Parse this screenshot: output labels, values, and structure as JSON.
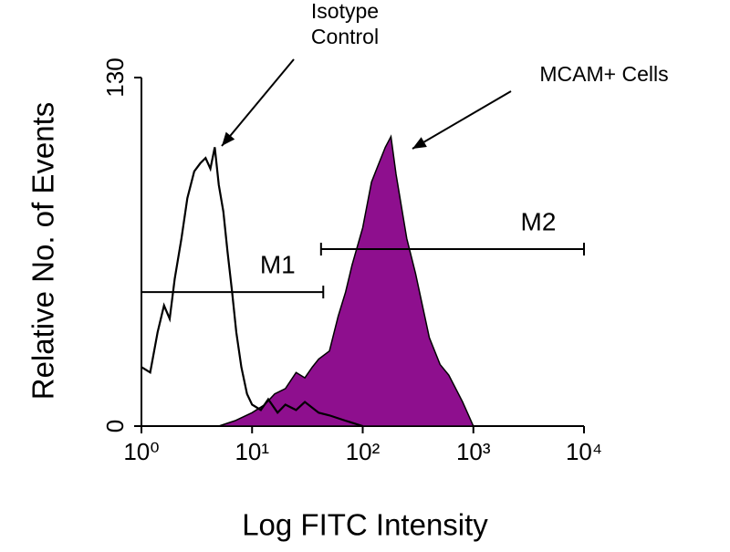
{
  "chart_data": {
    "type": "histogram-overlay",
    "x_label": "Log FITC Intensity",
    "y_label": "Relative No. of Events",
    "xscale": "log",
    "xlim": [
      1,
      10000
    ],
    "xticks": [
      {
        "value": 1,
        "label": "10⁰"
      },
      {
        "value": 10,
        "label": "10¹"
      },
      {
        "value": 100,
        "label": "10²"
      },
      {
        "value": 1000,
        "label": "10³"
      },
      {
        "value": 10000,
        "label": "10⁴"
      }
    ],
    "ylim": [
      0,
      130
    ],
    "yticks": [
      0,
      130
    ],
    "series": [
      {
        "name": "Isotype Control",
        "color": "#000000",
        "filled": false,
        "x": [
          1,
          1.2,
          1.4,
          1.6,
          1.8,
          2,
          2.3,
          2.6,
          3,
          3.4,
          3.8,
          4.2,
          4.6,
          5,
          5.5,
          6,
          6.6,
          7.2,
          8,
          9,
          10,
          12,
          14,
          17,
          20,
          25,
          30,
          40,
          50,
          70,
          100
        ],
        "values": [
          22,
          20,
          35,
          45,
          40,
          55,
          70,
          85,
          95,
          98,
          100,
          96,
          104,
          90,
          80,
          65,
          50,
          35,
          22,
          12,
          8,
          6,
          10,
          5,
          8,
          6,
          9,
          5,
          4,
          2,
          0
        ]
      },
      {
        "name": "MCAM+ Cells",
        "color": "#8e0f8e",
        "filled": true,
        "x": [
          5,
          7,
          10,
          13,
          16,
          20,
          25,
          30,
          35,
          40,
          50,
          60,
          70,
          80,
          100,
          120,
          140,
          160,
          180,
          200,
          250,
          300,
          400,
          500,
          600,
          800,
          1000
        ],
        "values": [
          0,
          2,
          5,
          8,
          12,
          14,
          20,
          18,
          22,
          25,
          28,
          41,
          50,
          60,
          74,
          91,
          98,
          104,
          108,
          94,
          70,
          57,
          33,
          23,
          19,
          9,
          0
        ]
      }
    ],
    "markers": [
      {
        "label": "M1",
        "x": [
          1,
          44
        ],
        "y": 50
      },
      {
        "label": "M2",
        "x": [
          42,
          10000
        ],
        "y": 66
      }
    ],
    "annotations": [
      {
        "lines": [
          "Isotype",
          "Control"
        ]
      },
      {
        "lines": [
          "MCAM+ Cells"
        ]
      }
    ]
  }
}
